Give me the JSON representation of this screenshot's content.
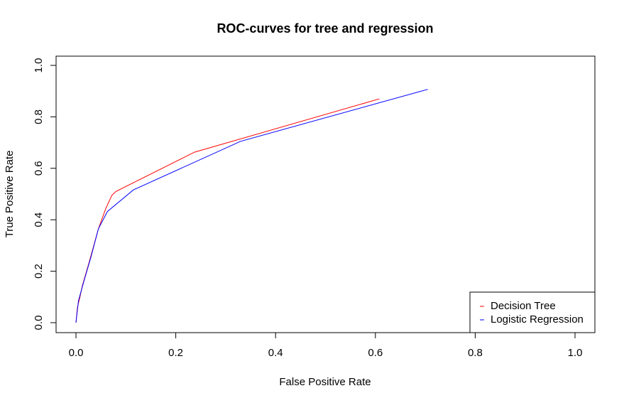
{
  "chart_data": {
    "type": "line",
    "title": "ROC-curves for tree and regression",
    "xlabel": "False Positive Rate",
    "ylabel": "True Positive Rate",
    "xlim": [
      0,
      1
    ],
    "ylim": [
      0,
      1
    ],
    "xticks": [
      "0.0",
      "0.2",
      "0.4",
      "0.6",
      "0.8",
      "1.0"
    ],
    "yticks": [
      "0.0",
      "0.2",
      "0.4",
      "0.6",
      "0.8",
      "1.0"
    ],
    "grid": false,
    "legend_position": "bottom-right",
    "series": [
      {
        "name": "Decision Tree",
        "color": "#ff0000",
        "points": [
          [
            0.0,
            0.0
          ],
          [
            0.003,
            0.06
          ],
          [
            0.008,
            0.1
          ],
          [
            0.013,
            0.145
          ],
          [
            0.025,
            0.225
          ],
          [
            0.045,
            0.365
          ],
          [
            0.06,
            0.445
          ],
          [
            0.072,
            0.495
          ],
          [
            0.08,
            0.51
          ],
          [
            0.238,
            0.663
          ],
          [
            0.608,
            0.87
          ]
        ]
      },
      {
        "name": "Logistic Regression",
        "color": "#0000ff",
        "points": [
          [
            0.0,
            0.0
          ],
          [
            0.005,
            0.085
          ],
          [
            0.01,
            0.12
          ],
          [
            0.015,
            0.155
          ],
          [
            0.03,
            0.255
          ],
          [
            0.045,
            0.365
          ],
          [
            0.063,
            0.432
          ],
          [
            0.115,
            0.516
          ],
          [
            0.33,
            0.705
          ],
          [
            0.705,
            0.907
          ]
        ]
      }
    ]
  }
}
